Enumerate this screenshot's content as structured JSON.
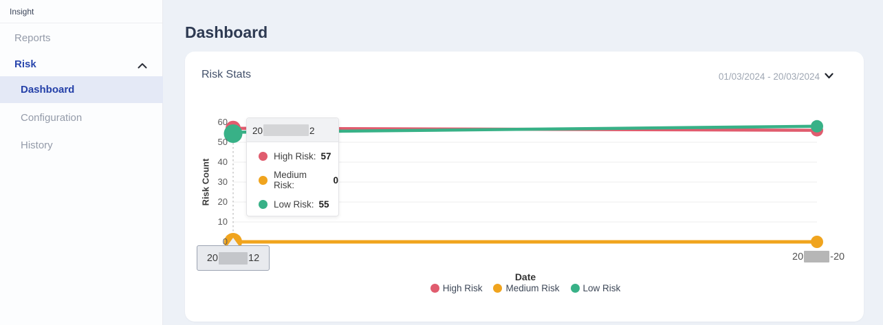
{
  "sidebar": {
    "brand": "Insight",
    "items": [
      {
        "label": "Reports"
      },
      {
        "label": "Risk"
      },
      {
        "label": "Dashboard"
      },
      {
        "label": "Configuration"
      },
      {
        "label": "History"
      }
    ]
  },
  "main": {
    "title": "Dashboard"
  },
  "card": {
    "title": "Risk Stats",
    "date_range": "01/03/2024 - 20/03/2024"
  },
  "chart": {
    "y_title": "Risk Count",
    "y_ticks": [
      "60",
      "50",
      "40",
      "30",
      "20",
      "10",
      "0"
    ],
    "x_title": "Date",
    "x_left_label": {
      "prefix": "20",
      "suffix": "12"
    },
    "x_right_label": {
      "prefix": "20",
      "suffix": "-20"
    },
    "tooltip": {
      "date_prefix": "20",
      "date_suffix": "2",
      "rows": [
        {
          "label": "High Risk:",
          "value": "57"
        },
        {
          "label": "Medium Risk:",
          "value": "0"
        },
        {
          "label": "Low Risk:",
          "value": "55"
        }
      ]
    },
    "legend": [
      {
        "label": "High Risk"
      },
      {
        "label": "Medium Risk"
      },
      {
        "label": "Low Risk"
      }
    ]
  },
  "chart_data": {
    "type": "line",
    "x": [
      "2024-03-12",
      "2024-03-20"
    ],
    "series": [
      {
        "name": "High Risk",
        "color": "#e05c6e",
        "values": [
          57,
          56
        ]
      },
      {
        "name": "Medium Risk",
        "color": "#f0a41e",
        "values": [
          0,
          0
        ]
      },
      {
        "name": "Low Risk",
        "color": "#38b187",
        "values": [
          55,
          58
        ]
      }
    ],
    "title": "Risk Stats",
    "xlabel": "Date",
    "ylabel": "Risk Count",
    "ylim": [
      0,
      60
    ],
    "grid": true,
    "legend_position": "bottom",
    "hovered_point": {
      "x": "2024-03-12",
      "high_risk": 57,
      "medium_risk": 0,
      "low_risk": 55
    }
  },
  "colors": {
    "accent_blue": "#2946ad",
    "high_risk": "#e05c6e",
    "medium_risk": "#f0a41e",
    "low_risk": "#38b187"
  }
}
